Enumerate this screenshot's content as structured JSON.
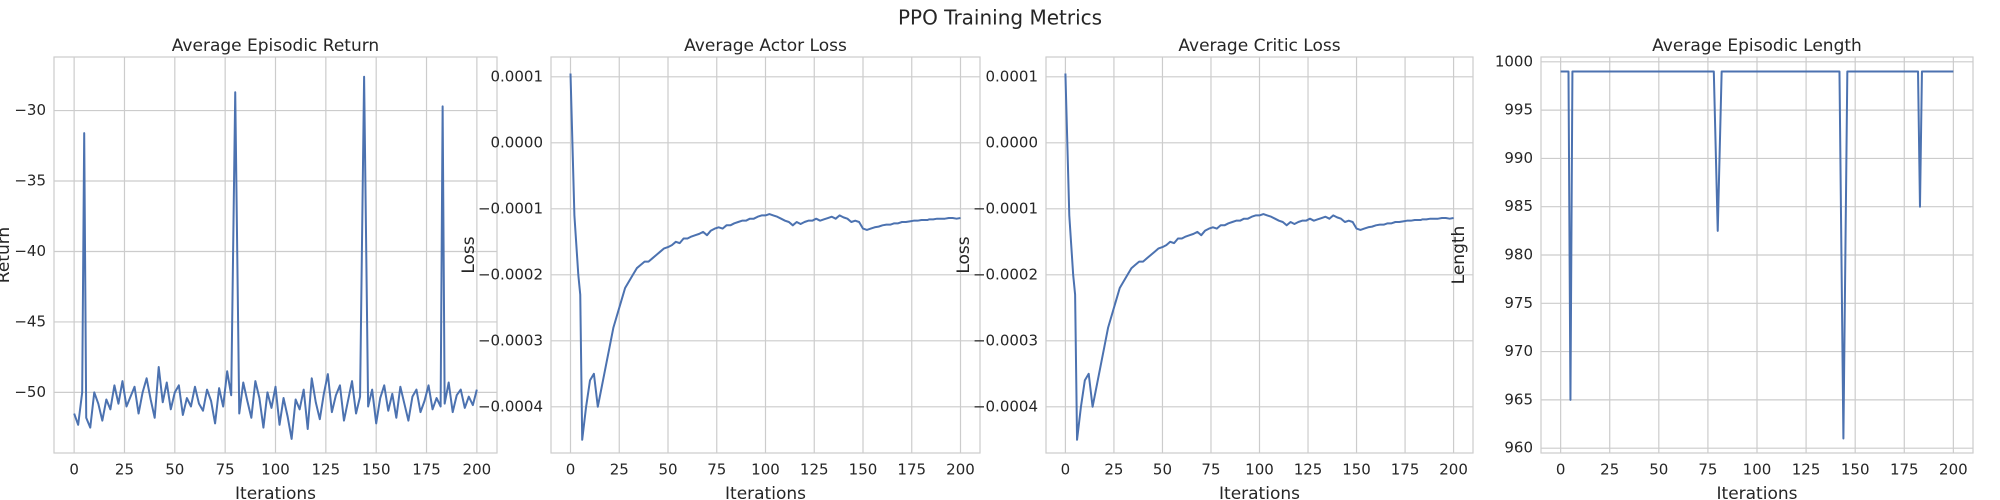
{
  "title": "PPO Training Metrics",
  "chart_data": [
    {
      "type": "line",
      "title": "Average Episodic Return",
      "xlabel": "Iterations",
      "ylabel": "Return",
      "grid": true,
      "xlim": [
        -10,
        210
      ],
      "xticks": [
        0,
        25,
        50,
        75,
        100,
        125,
        150,
        175,
        200
      ],
      "ylim": [
        -54.3,
        -26.2
      ],
      "yticks": [
        {
          "value": -50,
          "label": "−50"
        },
        {
          "value": -45,
          "label": "−45"
        },
        {
          "value": -40,
          "label": "−40"
        },
        {
          "value": -35,
          "label": "−35"
        },
        {
          "value": -30,
          "label": "−30"
        }
      ],
      "x": [
        0,
        2,
        4,
        5,
        6,
        8,
        10,
        12,
        14,
        16,
        18,
        20,
        22,
        24,
        26,
        28,
        30,
        32,
        34,
        36,
        38,
        40,
        42,
        44,
        46,
        48,
        50,
        52,
        54,
        56,
        58,
        60,
        62,
        64,
        66,
        68,
        70,
        72,
        74,
        76,
        78,
        80,
        82,
        84,
        86,
        88,
        90,
        92,
        94,
        96,
        98,
        100,
        102,
        104,
        106,
        108,
        110,
        112,
        114,
        116,
        118,
        120,
        122,
        124,
        126,
        128,
        130,
        132,
        134,
        136,
        138,
        140,
        142,
        144,
        146,
        148,
        150,
        152,
        154,
        156,
        158,
        160,
        162,
        164,
        166,
        168,
        170,
        172,
        174,
        176,
        178,
        180,
        182,
        183,
        184,
        186,
        188,
        190,
        192,
        194,
        196,
        198,
        200
      ],
      "series": [
        {
          "color": "#4c72b0",
          "values": [
            -51.5,
            -52.3,
            -50,
            -31.6,
            -51.8,
            -52.5,
            -50,
            -50.8,
            -52,
            -50.5,
            -51.2,
            -49.5,
            -50.8,
            -49.2,
            -51,
            -50.3,
            -49.6,
            -51.5,
            -50,
            -49,
            -50.5,
            -51.8,
            -48.2,
            -50.7,
            -49.3,
            -51.2,
            -50,
            -49.5,
            -51.6,
            -50.4,
            -51,
            -49.6,
            -50.8,
            -51.3,
            -49.8,
            -50.6,
            -52.2,
            -49.7,
            -51,
            -48.5,
            -50.2,
            -28.7,
            -51.5,
            -49.3,
            -50.6,
            -51.8,
            -49.2,
            -50.4,
            -52.5,
            -50,
            -51.1,
            -49.6,
            -52.3,
            -50.4,
            -51.7,
            -53.3,
            -50.5,
            -51.2,
            -49.8,
            -52.6,
            -49,
            -50.7,
            -51.9,
            -50.1,
            -48.7,
            -51.4,
            -50.2,
            -49.5,
            -52,
            -50.6,
            -49.2,
            -51.5,
            -50.3,
            -27.6,
            -51,
            -49.8,
            -52.2,
            -50.4,
            -49.5,
            -51.3,
            -50.1,
            -51.8,
            -49.6,
            -50.8,
            -52,
            -50.3,
            -49.8,
            -51.4,
            -50.6,
            -49.5,
            -51.2,
            -50.4,
            -51,
            -29.7,
            -50.8,
            -49.3,
            -51.4,
            -50.2,
            -49.8,
            -51.1,
            -50.3,
            -50.9,
            -49.8
          ]
        }
      ]
    },
    {
      "type": "line",
      "title": "Average Actor Loss",
      "xlabel": "Iterations",
      "ylabel": "Loss",
      "grid": true,
      "xlim": [
        -10,
        210
      ],
      "xticks": [
        0,
        25,
        50,
        75,
        100,
        125,
        150,
        175,
        200
      ],
      "ylim": [
        -0.00047,
        0.00013
      ],
      "yticks": [
        {
          "value": -0.0004,
          "label": "−0.0004"
        },
        {
          "value": -0.0003,
          "label": "−0.0003"
        },
        {
          "value": -0.0002,
          "label": "−0.0002"
        },
        {
          "value": -0.0001,
          "label": "−0.0001"
        },
        {
          "value": 0,
          "label": "0.0000"
        },
        {
          "value": 0.0001,
          "label": "0.0001"
        }
      ],
      "x": [
        0,
        2,
        4,
        5,
        6,
        8,
        10,
        12,
        14,
        16,
        18,
        20,
        22,
        24,
        26,
        28,
        30,
        32,
        34,
        36,
        38,
        40,
        42,
        44,
        46,
        48,
        50,
        52,
        54,
        56,
        58,
        60,
        62,
        64,
        66,
        68,
        70,
        72,
        74,
        76,
        78,
        80,
        82,
        84,
        86,
        88,
        90,
        92,
        94,
        96,
        98,
        100,
        102,
        104,
        106,
        108,
        110,
        112,
        114,
        116,
        118,
        120,
        122,
        124,
        126,
        128,
        130,
        132,
        134,
        136,
        138,
        140,
        142,
        144,
        146,
        148,
        150,
        152,
        154,
        156,
        158,
        160,
        162,
        164,
        166,
        168,
        170,
        172,
        174,
        176,
        178,
        180,
        182,
        183,
        184,
        186,
        188,
        190,
        192,
        194,
        196,
        198,
        200
      ],
      "series": [
        {
          "color": "#4c72b0",
          "values": [
            0.000105,
            -0.00011,
            -0.0002,
            -0.00023,
            -0.00045,
            -0.0004,
            -0.00036,
            -0.00035,
            -0.0004,
            -0.00037,
            -0.00034,
            -0.00031,
            -0.00028,
            -0.00026,
            -0.00024,
            -0.00022,
            -0.00021,
            -0.0002,
            -0.00019,
            -0.000185,
            -0.00018,
            -0.00018,
            -0.000175,
            -0.00017,
            -0.000165,
            -0.00016,
            -0.000158,
            -0.000155,
            -0.00015,
            -0.000152,
            -0.000145,
            -0.000145,
            -0.000142,
            -0.00014,
            -0.000138,
            -0.000135,
            -0.00014,
            -0.000133,
            -0.00013,
            -0.000128,
            -0.00013,
            -0.000125,
            -0.000125,
            -0.000122,
            -0.00012,
            -0.000118,
            -0.000118,
            -0.000115,
            -0.000115,
            -0.000112,
            -0.00011,
            -0.00011,
            -0.000108,
            -0.00011,
            -0.000112,
            -0.000115,
            -0.000118,
            -0.00012,
            -0.000125,
            -0.00012,
            -0.000123,
            -0.00012,
            -0.000118,
            -0.000118,
            -0.000115,
            -0.000118,
            -0.000116,
            -0.000114,
            -0.000112,
            -0.000115,
            -0.00011,
            -0.000113,
            -0.000115,
            -0.00012,
            -0.000118,
            -0.00012,
            -0.00013,
            -0.000132,
            -0.00013,
            -0.000128,
            -0.000127,
            -0.000125,
            -0.000124,
            -0.000124,
            -0.000122,
            -0.000122,
            -0.00012,
            -0.00012,
            -0.000119,
            -0.000118,
            -0.000118,
            -0.000117,
            -0.000117,
            -0.000117,
            -0.000116,
            -0.000116,
            -0.000115,
            -0.000115,
            -0.000115,
            -0.000114,
            -0.000114,
            -0.000115,
            -0.000114
          ]
        }
      ]
    },
    {
      "type": "line",
      "title": "Average Critic Loss",
      "xlabel": "Iterations",
      "ylabel": "Loss",
      "grid": true,
      "xlim": [
        -10,
        210
      ],
      "xticks": [
        0,
        25,
        50,
        75,
        100,
        125,
        150,
        175,
        200
      ],
      "ylim": [
        -0.00047,
        0.00013
      ],
      "yticks": [
        {
          "value": -0.0004,
          "label": "−0.0004"
        },
        {
          "value": -0.0003,
          "label": "−0.0003"
        },
        {
          "value": -0.0002,
          "label": "−0.0002"
        },
        {
          "value": -0.0001,
          "label": "−0.0001"
        },
        {
          "value": 0,
          "label": "0.0000"
        },
        {
          "value": 0.0001,
          "label": "0.0001"
        }
      ],
      "x": [
        0,
        2,
        4,
        5,
        6,
        8,
        10,
        12,
        14,
        16,
        18,
        20,
        22,
        24,
        26,
        28,
        30,
        32,
        34,
        36,
        38,
        40,
        42,
        44,
        46,
        48,
        50,
        52,
        54,
        56,
        58,
        60,
        62,
        64,
        66,
        68,
        70,
        72,
        74,
        76,
        78,
        80,
        82,
        84,
        86,
        88,
        90,
        92,
        94,
        96,
        98,
        100,
        102,
        104,
        106,
        108,
        110,
        112,
        114,
        116,
        118,
        120,
        122,
        124,
        126,
        128,
        130,
        132,
        134,
        136,
        138,
        140,
        142,
        144,
        146,
        148,
        150,
        152,
        154,
        156,
        158,
        160,
        162,
        164,
        166,
        168,
        170,
        172,
        174,
        176,
        178,
        180,
        182,
        183,
        184,
        186,
        188,
        190,
        192,
        194,
        196,
        198,
        200
      ],
      "series": [
        {
          "color": "#4c72b0",
          "values": [
            0.000105,
            -0.00011,
            -0.0002,
            -0.00023,
            -0.00045,
            -0.0004,
            -0.00036,
            -0.00035,
            -0.0004,
            -0.00037,
            -0.00034,
            -0.00031,
            -0.00028,
            -0.00026,
            -0.00024,
            -0.00022,
            -0.00021,
            -0.0002,
            -0.00019,
            -0.000185,
            -0.00018,
            -0.00018,
            -0.000175,
            -0.00017,
            -0.000165,
            -0.00016,
            -0.000158,
            -0.000155,
            -0.00015,
            -0.000152,
            -0.000145,
            -0.000145,
            -0.000142,
            -0.00014,
            -0.000138,
            -0.000135,
            -0.00014,
            -0.000133,
            -0.00013,
            -0.000128,
            -0.00013,
            -0.000125,
            -0.000125,
            -0.000122,
            -0.00012,
            -0.000118,
            -0.000118,
            -0.000115,
            -0.000115,
            -0.000112,
            -0.00011,
            -0.00011,
            -0.000108,
            -0.00011,
            -0.000112,
            -0.000115,
            -0.000118,
            -0.00012,
            -0.000125,
            -0.00012,
            -0.000123,
            -0.00012,
            -0.000118,
            -0.000118,
            -0.000115,
            -0.000118,
            -0.000116,
            -0.000114,
            -0.000112,
            -0.000115,
            -0.00011,
            -0.000113,
            -0.000115,
            -0.00012,
            -0.000118,
            -0.00012,
            -0.00013,
            -0.000132,
            -0.00013,
            -0.000128,
            -0.000127,
            -0.000125,
            -0.000124,
            -0.000124,
            -0.000122,
            -0.000122,
            -0.00012,
            -0.00012,
            -0.000119,
            -0.000118,
            -0.000118,
            -0.000117,
            -0.000117,
            -0.000117,
            -0.000116,
            -0.000116,
            -0.000115,
            -0.000115,
            -0.000115,
            -0.000114,
            -0.000114,
            -0.000115,
            -0.000114
          ]
        }
      ]
    },
    {
      "type": "line",
      "title": "Average Episodic Length",
      "xlabel": "Iterations",
      "ylabel": "Length",
      "grid": true,
      "xlim": [
        -10,
        210
      ],
      "xticks": [
        0,
        25,
        50,
        75,
        100,
        125,
        150,
        175,
        200
      ],
      "ylim": [
        959.5,
        1000.5
      ],
      "yticks": [
        960,
        965,
        970,
        975,
        980,
        985,
        990,
        995,
        1000
      ],
      "x": [
        0,
        2,
        4,
        5,
        6,
        8,
        10,
        12,
        14,
        16,
        18,
        20,
        22,
        24,
        26,
        28,
        30,
        32,
        34,
        36,
        38,
        40,
        42,
        44,
        46,
        48,
        50,
        52,
        54,
        56,
        58,
        60,
        62,
        64,
        66,
        68,
        70,
        72,
        74,
        76,
        78,
        80,
        82,
        84,
        86,
        88,
        90,
        92,
        94,
        96,
        98,
        100,
        102,
        104,
        106,
        108,
        110,
        112,
        114,
        116,
        118,
        120,
        122,
        124,
        126,
        128,
        130,
        132,
        134,
        136,
        138,
        140,
        142,
        144,
        146,
        148,
        150,
        152,
        154,
        156,
        158,
        160,
        162,
        164,
        166,
        168,
        170,
        172,
        174,
        176,
        178,
        180,
        182,
        183,
        184,
        186,
        188,
        190,
        192,
        194,
        196,
        198,
        200
      ],
      "series": [
        {
          "color": "#4c72b0",
          "values": [
            999,
            999,
            999,
            965,
            999,
            999,
            999,
            999,
            999,
            999,
            999,
            999,
            999,
            999,
            999,
            999,
            999,
            999,
            999,
            999,
            999,
            999,
            999,
            999,
            999,
            999,
            999,
            999,
            999,
            999,
            999,
            999,
            999,
            999,
            999,
            999,
            999,
            999,
            999,
            999,
            999,
            982.5,
            999,
            999,
            999,
            999,
            999,
            999,
            999,
            999,
            999,
            999,
            999,
            999,
            999,
            999,
            999,
            999,
            999,
            999,
            999,
            999,
            999,
            999,
            999,
            999,
            999,
            999,
            999,
            999,
            999,
            999,
            999,
            961,
            999,
            999,
            999,
            999,
            999,
            999,
            999,
            999,
            999,
            999,
            999,
            999,
            999,
            999,
            999,
            999,
            999,
            999,
            999,
            985,
            999,
            999,
            999,
            999,
            999,
            999,
            999,
            999,
            999
          ]
        }
      ]
    }
  ]
}
